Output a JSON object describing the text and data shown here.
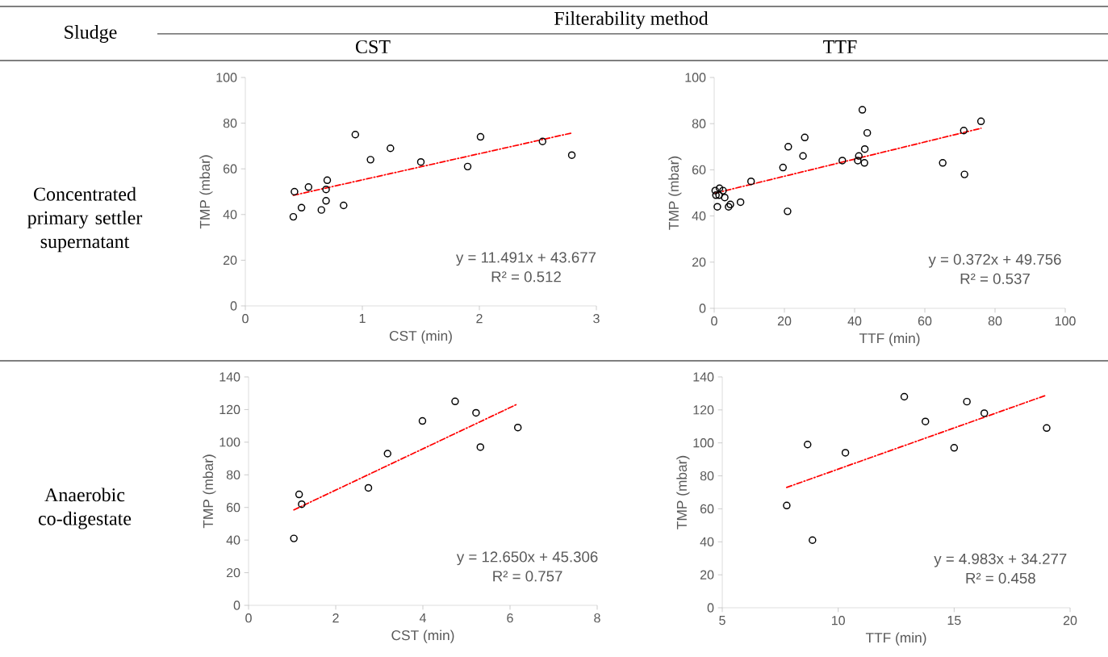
{
  "chart_data": [
    {
      "type": "scatter",
      "title": "CST",
      "xlabel": "CST (min)",
      "ylabel": "TMP (mbar)",
      "annotations": [
        "Sludge",
        "Filterability method",
        "Concentrated primary settler supernatant",
        "y = 11.491x + 43.677",
        "R² = 0.512"
      ],
      "xlim": [
        0,
        3
      ],
      "xticks": [
        0,
        1,
        2,
        3
      ],
      "ylim": [
        0,
        100
      ],
      "yticks": [
        0,
        20,
        40,
        60,
        80,
        100
      ],
      "series": [
        {
          "color": "#000000",
          "marker": "circle",
          "x": [
            0.41,
            0.42,
            0.48,
            0.54,
            0.65,
            0.69,
            0.69,
            0.7,
            0.84,
            0.94,
            1.07,
            1.24,
            1.5,
            1.9,
            2.01,
            2.54,
            2.79
          ],
          "values": [
            39,
            50,
            43,
            52,
            42,
            51,
            46,
            55,
            44,
            75,
            64,
            69,
            63,
            61,
            74,
            72,
            66
          ]
        },
        {
          "type": "line",
          "color": "#ff0000",
          "line_style": "dashed",
          "marker": "none",
          "x": [
            0.41,
            2.79
          ],
          "values": [
            48.4,
            75.7
          ]
        }
      ]
    },
    {
      "type": "scatter",
      "title": "TTF",
      "xlabel": "TTF (min)",
      "ylabel": "TMP (mbar)",
      "annotations": [
        "y = 0.372x + 49.756",
        "R² = 0.537"
      ],
      "xlim": [
        0,
        100
      ],
      "xticks": [
        0,
        20,
        40,
        60,
        80,
        100
      ],
      "ylim": [
        0,
        100
      ],
      "yticks": [
        0,
        20,
        40,
        60,
        80,
        100
      ],
      "series": [
        {
          "color": "#000000",
          "marker": "circle",
          "x": [
            0.3,
            0.5,
            0.9,
            1.4,
            1.5,
            2.5,
            3,
            4.1,
            4.6,
            7.5,
            10.5,
            19.6,
            20.9,
            21.1,
            25.3,
            25.8,
            36.5,
            40.9,
            41.2,
            42.2,
            42.8,
            42.9,
            43.6,
            65.1,
            71.1,
            71.3,
            76
          ],
          "values": [
            51,
            49,
            44,
            49,
            52,
            51,
            48,
            44,
            45,
            46,
            55,
            61,
            42,
            70,
            66,
            74,
            64,
            64,
            66,
            86,
            63,
            69,
            76,
            63,
            77,
            58,
            81
          ]
        },
        {
          "type": "line",
          "color": "#ff0000",
          "line_style": "dashed",
          "marker": "none",
          "x": [
            0.3,
            76
          ],
          "values": [
            49.9,
            78
          ]
        }
      ]
    },
    {
      "type": "scatter",
      "xlabel": "CST (min)",
      "ylabel": "TMP (mbar)",
      "annotations": [
        "Anaerobic co-digestate",
        "y = 12.650x + 45.306",
        "R² = 0.757"
      ],
      "xlim": [
        0,
        8
      ],
      "xticks": [
        0,
        2,
        4,
        6,
        8
      ],
      "ylim": [
        0,
        140
      ],
      "yticks": [
        0,
        20,
        40,
        60,
        80,
        100,
        120,
        140
      ],
      "series": [
        {
          "color": "#000000",
          "marker": "circle",
          "x": [
            1.04,
            1.16,
            1.22,
            2.75,
            3.19,
            3.99,
            4.74,
            5.22,
            5.32,
            6.18
          ],
          "values": [
            41,
            68,
            62,
            72,
            93,
            113,
            125,
            118,
            97,
            109
          ]
        },
        {
          "type": "line",
          "color": "#ff0000",
          "line_style": "dashed",
          "marker": "none",
          "x": [
            1.04,
            6.18
          ],
          "values": [
            58.5,
            123.5
          ]
        }
      ]
    },
    {
      "type": "scatter",
      "xlabel": "TTF (min)",
      "ylabel": "TMP (mbar)",
      "annotations": [
        "y = 4.983x + 34.277",
        "R² = 0.458"
      ],
      "xlim": [
        5,
        20
      ],
      "xticks": [
        5,
        10,
        15,
        20
      ],
      "ylim": [
        0,
        140
      ],
      "yticks": [
        0,
        20,
        40,
        60,
        80,
        100,
        120,
        140
      ],
      "series": [
        {
          "color": "#000000",
          "marker": "circle",
          "x": [
            7.78,
            8.68,
            8.89,
            10.31,
            12.85,
            13.76,
            15.0,
            15.55,
            16.3,
            18.99
          ],
          "values": [
            62,
            99,
            41,
            94,
            128,
            113,
            97,
            125,
            118,
            109
          ]
        },
        {
          "type": "line",
          "color": "#ff0000",
          "line_style": "dashed",
          "marker": "none",
          "x": [
            7.78,
            18.99
          ],
          "values": [
            73,
            129
          ]
        }
      ]
    }
  ]
}
